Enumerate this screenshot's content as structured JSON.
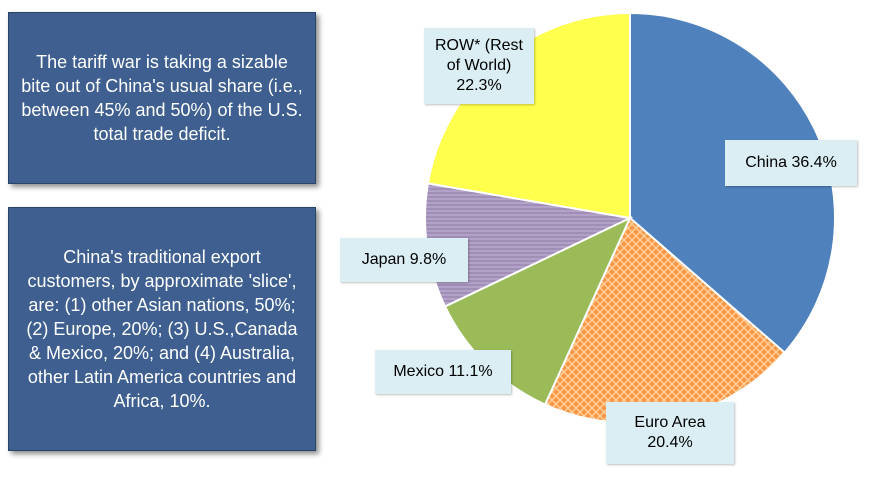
{
  "notes": {
    "tariff": "The tariff war is taking a sizable bite out of China's usual share (i.e., between 45% and 50%) of the U.S. total trade deficit.",
    "customers": "China's traditional  export customers, by approximate 'slice', are: (1) other Asian nations, 50%; (2) Europe, 20%; (3) U.S.,Canada & Mexico, 20%; and (4) Australia, other Latin America countries and Africa, 10%."
  },
  "chart_data": {
    "type": "pie",
    "title": "",
    "slices": [
      {
        "name": "China",
        "value": 36.4,
        "label": "China 36.4%",
        "color": "#4f81bd",
        "pattern": "solid"
      },
      {
        "name": "Euro Area",
        "value": 20.4,
        "label": "Euro Area 20.4%",
        "color": "#f79646",
        "pattern": "crosshatch"
      },
      {
        "name": "Mexico",
        "value": 11.1,
        "label": "Mexico 11.1%",
        "color": "#9bbb59",
        "pattern": "solid"
      },
      {
        "name": "Japan",
        "value": 9.8,
        "label": "Japan 9.8%",
        "color": "#b3a2c7",
        "pattern": "horizontal-lines"
      },
      {
        "name": "ROW* (Rest of World)",
        "value": 22.3,
        "label": "ROW* (Rest of World) 22.3%",
        "color": "#ffff4d",
        "pattern": "solid"
      }
    ],
    "start": "12 o'clock",
    "direction": "clockwise",
    "legend": "none"
  },
  "labels": {
    "row": "ROW* (Rest of World) 22.3%",
    "china": "China 36.4%",
    "japan": "Japan 9.8%",
    "mexico": "Mexico 11.1%",
    "euro": "Euro Area 20.4%"
  }
}
